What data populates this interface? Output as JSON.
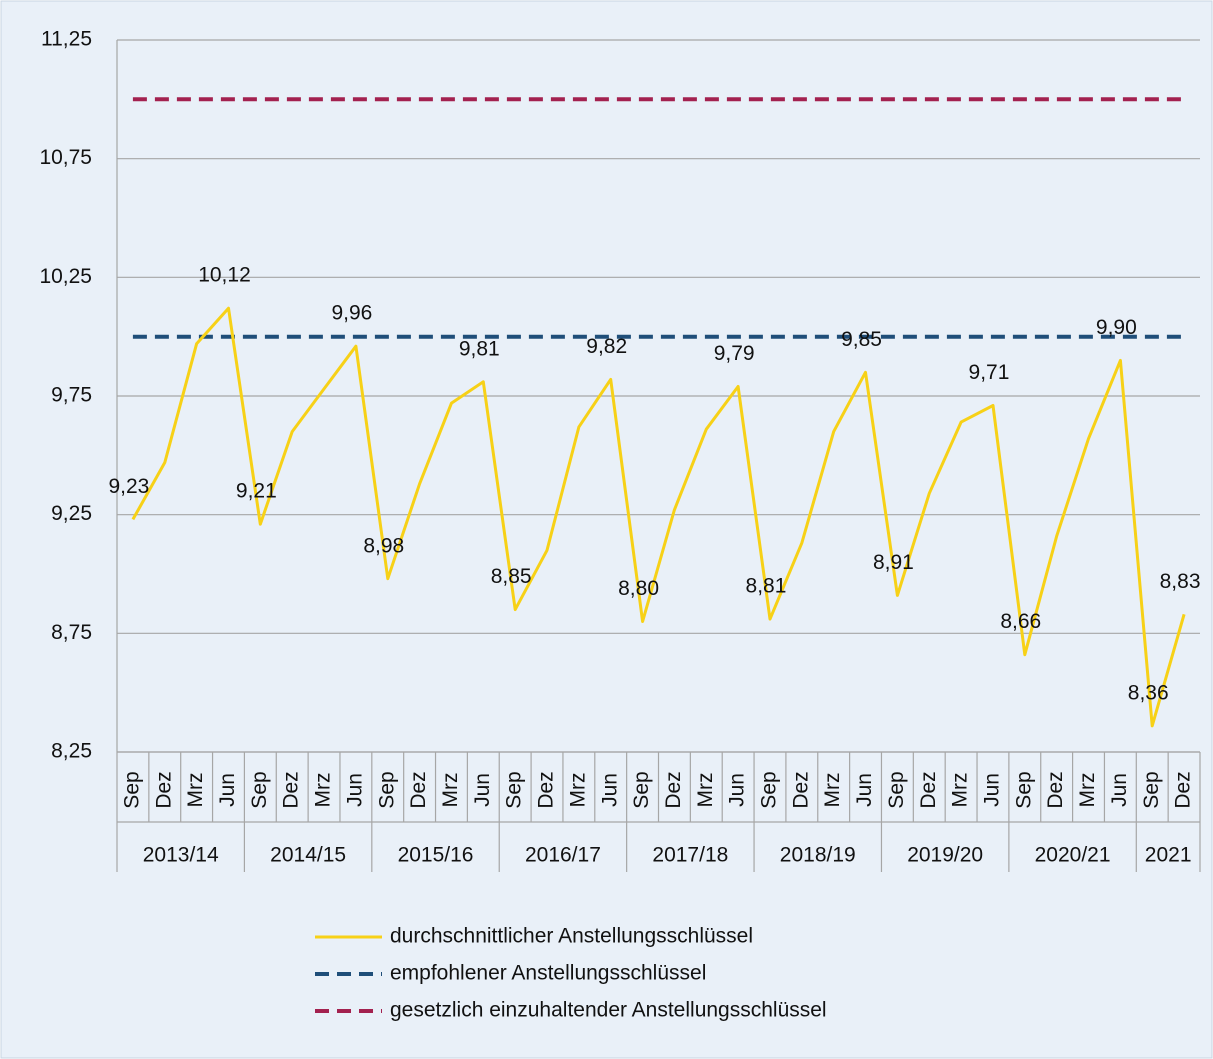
{
  "chart_data": {
    "type": "line",
    "groups": [
      {
        "label": "2013/14",
        "categories": [
          "Sep",
          "Dez",
          "Mrz",
          "Jun"
        ]
      },
      {
        "label": "2014/15",
        "categories": [
          "Sep",
          "Dez",
          "Mrz",
          "Jun"
        ]
      },
      {
        "label": "2015/16",
        "categories": [
          "Sep",
          "Dez",
          "Mrz",
          "Jun"
        ]
      },
      {
        "label": "2016/17",
        "categories": [
          "Sep",
          "Dez",
          "Mrz",
          "Jun"
        ]
      },
      {
        "label": "2017/18",
        "categories": [
          "Sep",
          "Dez",
          "Mrz",
          "Jun"
        ]
      },
      {
        "label": "2018/19",
        "categories": [
          "Sep",
          "Dez",
          "Mrz",
          "Jun"
        ]
      },
      {
        "label": "2019/20",
        "categories": [
          "Sep",
          "Dez",
          "Mrz",
          "Jun"
        ]
      },
      {
        "label": "2020/21",
        "categories": [
          "Sep",
          "Dez",
          "Mrz",
          "Jun"
        ]
      },
      {
        "label": "2021",
        "categories": [
          "Sep",
          "Dez"
        ]
      }
    ],
    "series": [
      {
        "name": "durchschnittlicher Anstellungsschlüssel",
        "color": "#f7d117",
        "dashed": false,
        "values": [
          9.23,
          9.47,
          9.97,
          10.12,
          9.21,
          9.6,
          9.78,
          9.96,
          8.98,
          9.38,
          9.72,
          9.81,
          8.85,
          9.1,
          9.62,
          9.82,
          8.8,
          9.27,
          9.61,
          9.79,
          8.81,
          9.13,
          9.6,
          9.85,
          8.91,
          9.34,
          9.64,
          9.71,
          8.66,
          9.16,
          9.57,
          9.9,
          8.36,
          8.83
        ],
        "value_labels": [
          "9,23",
          null,
          null,
          "10,12",
          "9,21",
          null,
          null,
          "9,96",
          "8,98",
          null,
          null,
          "9,81",
          "8,85",
          null,
          null,
          "9,82",
          "8,80",
          null,
          null,
          "9,79",
          "8,81",
          null,
          null,
          "9,85",
          "8,91",
          null,
          null,
          "9,71",
          "8,66",
          null,
          null,
          "9,90",
          "8,36",
          "8,83"
        ]
      },
      {
        "name": "empfohlener Anstellungsschlüssel",
        "color": "#1f4e79",
        "dashed": true,
        "values": [
          10,
          10,
          10,
          10,
          10,
          10,
          10,
          10,
          10,
          10,
          10,
          10,
          10,
          10,
          10,
          10,
          10,
          10,
          10,
          10,
          10,
          10,
          10,
          10,
          10,
          10,
          10,
          10,
          10,
          10,
          10,
          10,
          10,
          10
        ]
      },
      {
        "name": "gesetzlich einzuhaltender Anstellungsschlüssel",
        "color": "#a3214f",
        "dashed": true,
        "values": [
          11,
          11,
          11,
          11,
          11,
          11,
          11,
          11,
          11,
          11,
          11,
          11,
          11,
          11,
          11,
          11,
          11,
          11,
          11,
          11,
          11,
          11,
          11,
          11,
          11,
          11,
          11,
          11,
          11,
          11,
          11,
          11,
          11,
          11
        ]
      }
    ],
    "ylim": [
      8.25,
      11.25
    ],
    "yticks": [
      {
        "value": 8.25,
        "label": "8,25"
      },
      {
        "value": 8.75,
        "label": "8,75"
      },
      {
        "value": 9.25,
        "label": "9,25"
      },
      {
        "value": 9.75,
        "label": "9,75"
      },
      {
        "value": 10.25,
        "label": "10,25"
      },
      {
        "value": 10.75,
        "label": "10,75"
      },
      {
        "value": 11.25,
        "label": "11,25"
      }
    ],
    "grid": true
  }
}
